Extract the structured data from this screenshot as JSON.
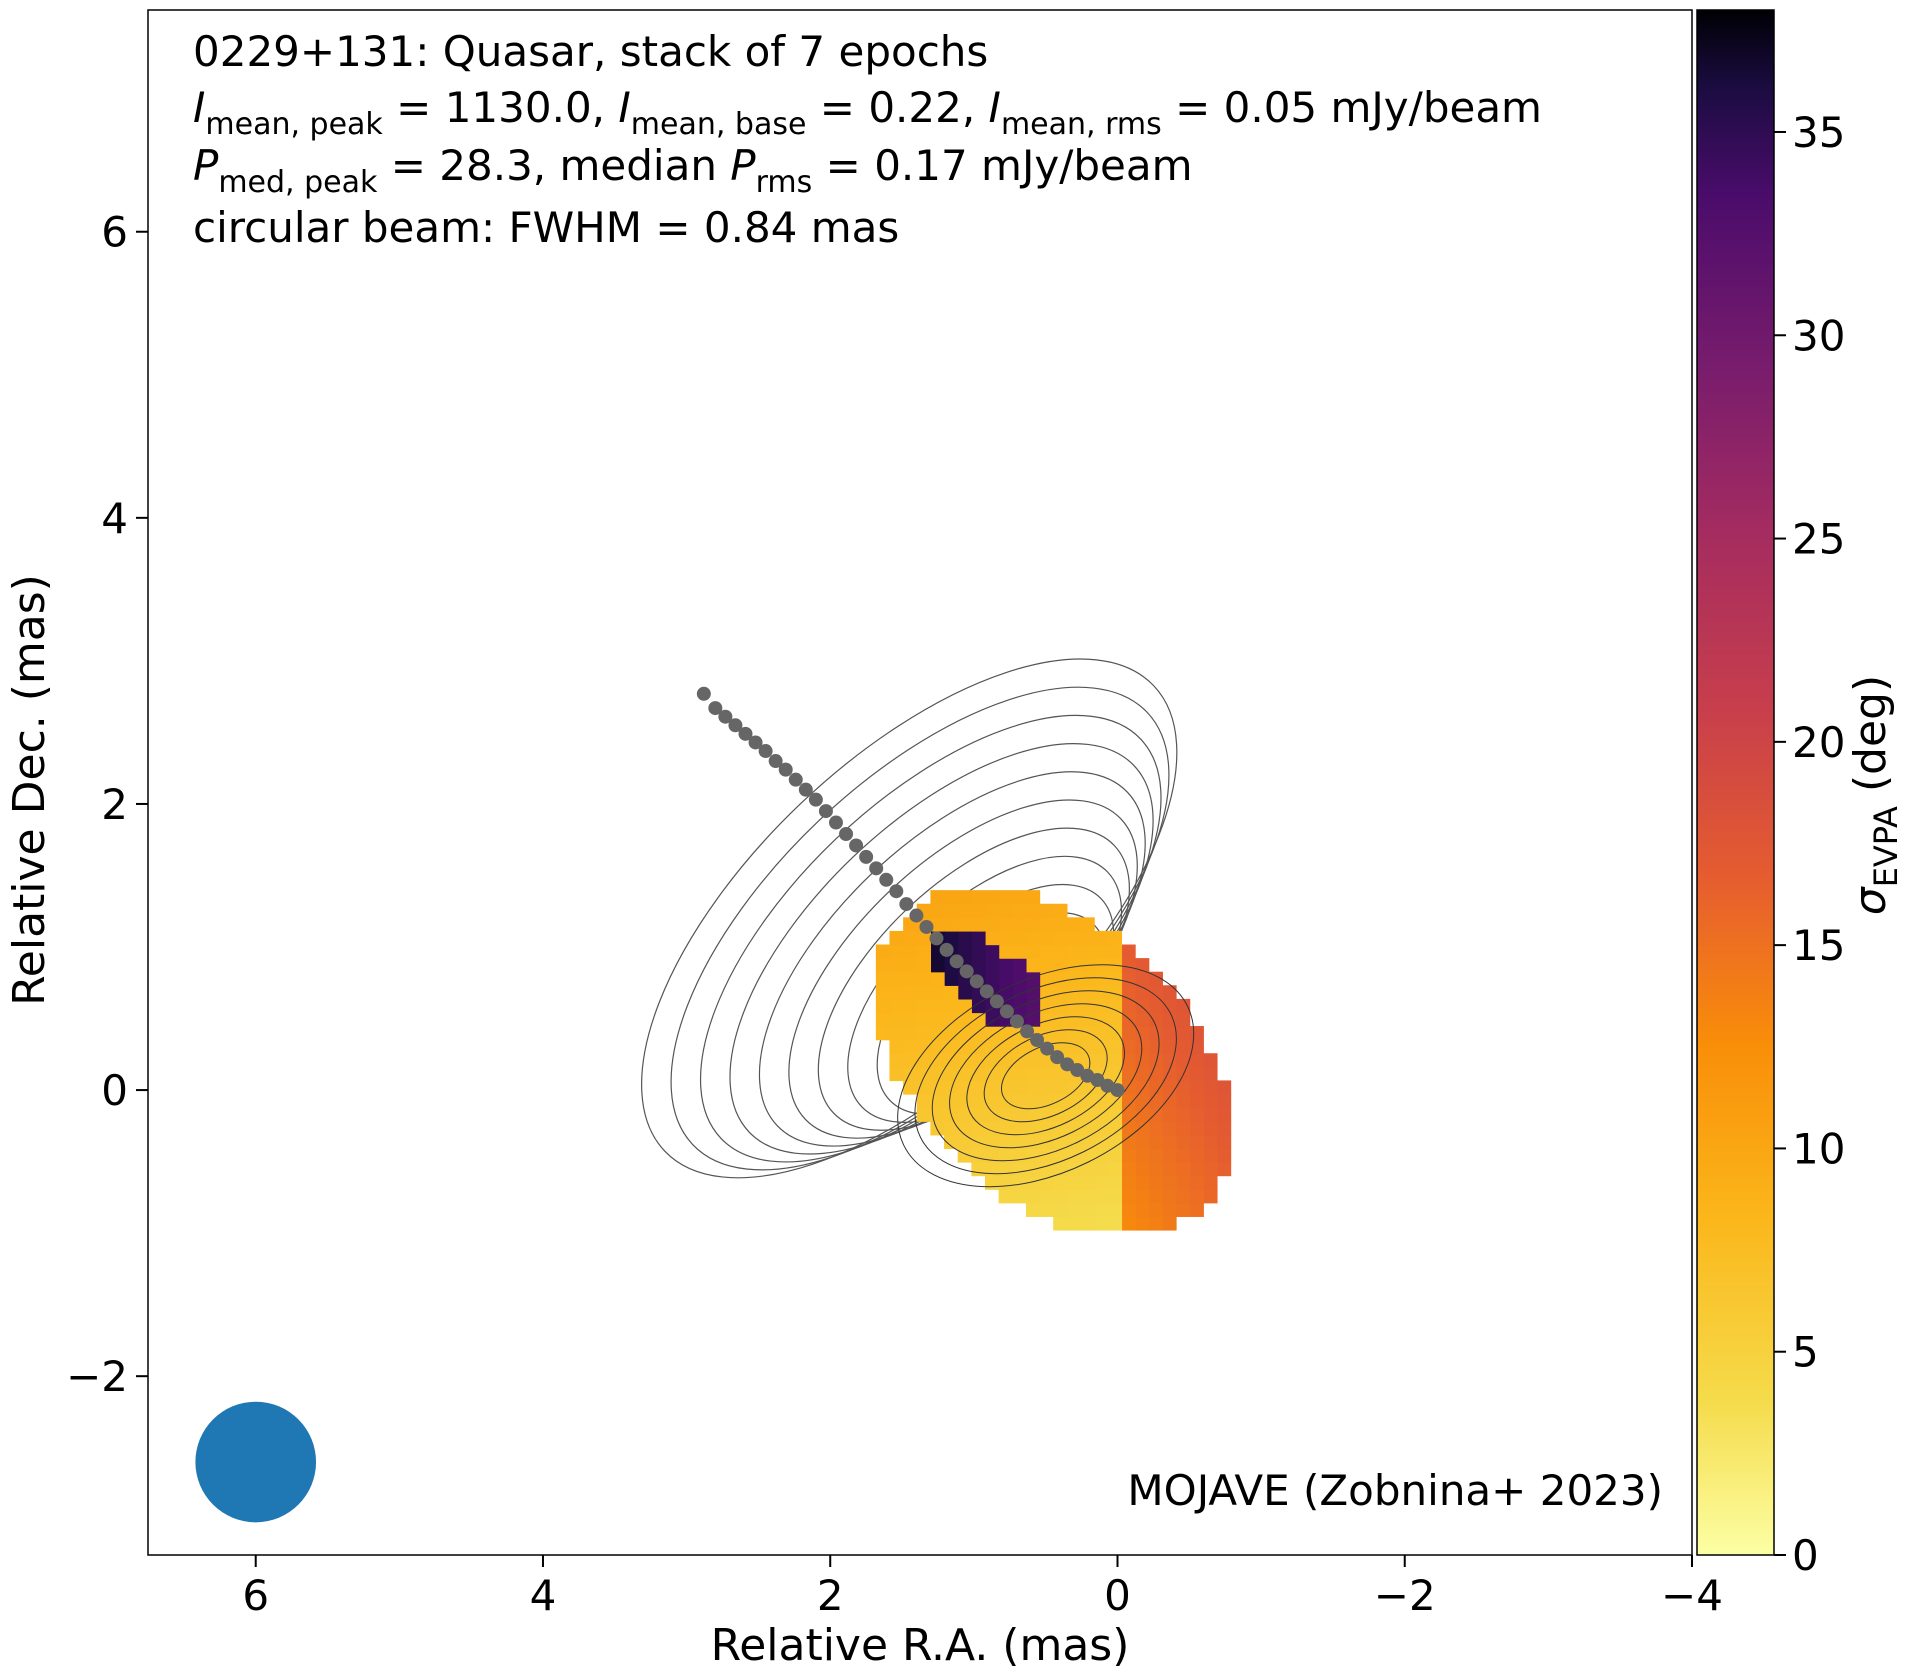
{
  "chart_data": {
    "type": "heatmap",
    "title_lines": {
      "line1": "0229+131: Quasar, stack of 7 epochs",
      "line2": {
        "i_peak_label": "I",
        "i_peak_sub": "mean, peak",
        "i_peak_value": " = 1130.0, ",
        "i_base_label": "I",
        "i_base_sub": "mean, base",
        "i_base_value": " = 0.22, ",
        "i_rms_label": "I",
        "i_rms_sub": "mean, rms",
        "i_rms_value": " = 0.05 mJy/beam"
      },
      "line3": {
        "p_label": "P",
        "p_sub": "med, peak",
        "p_value": " = 28.3, median ",
        "prms_label": "P",
        "prms_sub": "rms",
        "prms_value": " = 0.17 mJy/beam"
      },
      "line4": "circular beam: FWHM = 0.84 mas"
    },
    "credit": "MOJAVE (Zobnina+ 2023)",
    "xlabel": "Relative R.A. (mas)",
    "ylabel": "Relative Dec. (mas)",
    "xlim": [
      6.75,
      -4.0
    ],
    "ylim": [
      -3.25,
      7.55
    ],
    "xticks": [
      6,
      4,
      2,
      0,
      -2,
      -4
    ],
    "yticks": [
      6,
      4,
      2,
      0,
      -2
    ],
    "xtick_labels": [
      "6",
      "4",
      "2",
      "0",
      "−2",
      "−4"
    ],
    "ytick_labels": [
      "6",
      "4",
      "2",
      "0",
      "−2"
    ],
    "colorbar": {
      "label_symbol": "σ",
      "label_sub": "EVPA",
      "label_unit": " (deg)",
      "range": [
        0,
        38
      ],
      "ticks": [
        0,
        5,
        10,
        15,
        20,
        25,
        30,
        35
      ],
      "tick_labels": [
        "0",
        "5",
        "10",
        "15",
        "20",
        "25",
        "30",
        "35"
      ],
      "colormap": "inferno_r"
    },
    "beam": {
      "center": [
        6.0,
        -2.6
      ],
      "fwhm_mas": 0.84,
      "color": "#1f77b4"
    },
    "ridge_line": {
      "color": "#666666",
      "points": [
        [
          0.0,
          0.0
        ],
        [
          0.07,
          0.03
        ],
        [
          0.14,
          0.07
        ],
        [
          0.21,
          0.1
        ],
        [
          0.28,
          0.14
        ],
        [
          0.35,
          0.18
        ],
        [
          0.42,
          0.23
        ],
        [
          0.49,
          0.29
        ],
        [
          0.56,
          0.35
        ],
        [
          0.63,
          0.41
        ],
        [
          0.7,
          0.48
        ],
        [
          0.77,
          0.55
        ],
        [
          0.84,
          0.62
        ],
        [
          0.91,
          0.69
        ],
        [
          0.98,
          0.76
        ],
        [
          1.05,
          0.83
        ],
        [
          1.12,
          0.9
        ],
        [
          1.19,
          0.98
        ],
        [
          1.26,
          1.06
        ],
        [
          1.33,
          1.14
        ],
        [
          1.4,
          1.22
        ],
        [
          1.47,
          1.3
        ],
        [
          1.54,
          1.39
        ],
        [
          1.61,
          1.47
        ],
        [
          1.68,
          1.55
        ],
        [
          1.75,
          1.63
        ],
        [
          1.82,
          1.71
        ],
        [
          1.89,
          1.79
        ],
        [
          1.96,
          1.87
        ],
        [
          2.03,
          1.95
        ],
        [
          2.1,
          2.03
        ],
        [
          2.17,
          2.1
        ],
        [
          2.24,
          2.17
        ],
        [
          2.31,
          2.24
        ],
        [
          2.38,
          2.3
        ],
        [
          2.45,
          2.37
        ],
        [
          2.52,
          2.43
        ],
        [
          2.59,
          2.49
        ],
        [
          2.66,
          2.55
        ],
        [
          2.73,
          2.61
        ],
        [
          2.8,
          2.67
        ],
        [
          2.88,
          2.77
        ]
      ]
    },
    "contour_levels": 12,
    "contour_color": "#555555"
  }
}
